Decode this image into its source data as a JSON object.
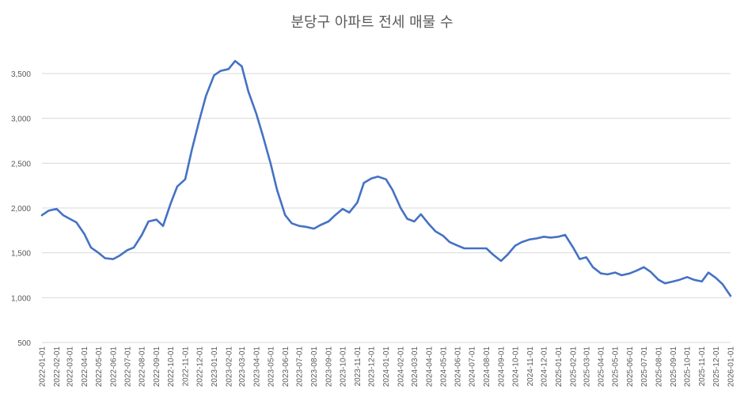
{
  "chart_data": {
    "type": "line",
    "title": "분당구 아파트 전세 매물 수",
    "xlabel": "",
    "ylabel": "",
    "ylim": [
      500,
      3500
    ],
    "yticks": [
      "500",
      "1,000",
      "1,500",
      "2,000",
      "2,500",
      "3,000",
      "3,500"
    ],
    "x_ticks": [
      "2022-01-01",
      "2022-02-01",
      "2022-03-01",
      "2022-04-01",
      "2022-05-01",
      "2022-06-01",
      "2022-07-01",
      "2022-08-01",
      "2022-09-01",
      "2022-10-01",
      "2022-11-01",
      "2022-12-01",
      "2023-01-01",
      "2023-02-01",
      "2023-03-01",
      "2023-04-01",
      "2023-05-01",
      "2023-06-01",
      "2023-07-01",
      "2023-08-01",
      "2023-09-01",
      "2023-10-01",
      "2023-11-01",
      "2023-12-01",
      "2024-01-01",
      "2024-02-01",
      "2024-03-01",
      "2024-04-01",
      "2024-05-01",
      "2024-06-01",
      "2024-07-01",
      "2024-08-01",
      "2024-09-01",
      "2024-10-01",
      "2024-11-01",
      "2024-12-01",
      "2025-01-01",
      "2025-02-01",
      "2025-03-01",
      "2025-04-01",
      "2025-05-01",
      "2025-06-01",
      "2025-07-01",
      "2025-08-01",
      "2025-09-01",
      "2025-10-01",
      "2025-11-01",
      "2025-12-01",
      "2026-01-01"
    ],
    "grid": true,
    "line_color": "#4472c4",
    "series": [
      {
        "name": "",
        "x": [
          "2022-01-01",
          "2022-01-15",
          "2022-02-01",
          "2022-02-15",
          "2022-03-01",
          "2022-03-15",
          "2022-04-01",
          "2022-04-15",
          "2022-05-01",
          "2022-05-15",
          "2022-06-01",
          "2022-06-15",
          "2022-07-01",
          "2022-07-15",
          "2022-08-01",
          "2022-08-15",
          "2022-09-01",
          "2022-09-15",
          "2022-10-01",
          "2022-10-15",
          "2022-11-01",
          "2022-11-15",
          "2022-12-01",
          "2022-12-15",
          "2023-01-01",
          "2023-01-15",
          "2023-02-01",
          "2023-02-15",
          "2023-03-01",
          "2023-03-15",
          "2023-04-01",
          "2023-04-15",
          "2023-05-01",
          "2023-05-15",
          "2023-06-01",
          "2023-06-15",
          "2023-07-01",
          "2023-07-15",
          "2023-08-01",
          "2023-08-15",
          "2023-09-01",
          "2023-09-15",
          "2023-10-01",
          "2023-10-15",
          "2023-11-01",
          "2023-11-15",
          "2023-12-01",
          "2023-12-15",
          "2024-01-01",
          "2024-01-15",
          "2024-02-01",
          "2024-02-15",
          "2024-03-01",
          "2024-03-15",
          "2024-04-01",
          "2024-04-15",
          "2024-05-01",
          "2024-05-15",
          "2024-06-01",
          "2024-06-15",
          "2024-07-01",
          "2024-07-15",
          "2024-08-01",
          "2024-08-15",
          "2024-09-01",
          "2024-09-15",
          "2024-10-01",
          "2024-10-15",
          "2024-11-01",
          "2024-11-15",
          "2024-12-01",
          "2024-12-15",
          "2025-01-01",
          "2025-01-15",
          "2025-02-01",
          "2025-02-15",
          "2025-03-01",
          "2025-03-15",
          "2025-04-01",
          "2025-04-15",
          "2025-05-01",
          "2025-05-15",
          "2025-06-01",
          "2025-06-15",
          "2025-07-01",
          "2025-07-15",
          "2025-08-01",
          "2025-08-15",
          "2025-09-01",
          "2025-09-15",
          "2025-10-01",
          "2025-10-15",
          "2025-11-01",
          "2025-11-15",
          "2025-12-01",
          "2025-12-15",
          "2026-01-01"
        ],
        "values": [
          1920,
          1970,
          1990,
          1920,
          1880,
          1840,
          1710,
          1560,
          1500,
          1440,
          1430,
          1470,
          1530,
          1560,
          1700,
          1850,
          1870,
          1800,
          2050,
          2240,
          2320,
          2650,
          2980,
          3250,
          3480,
          3530,
          3550,
          3640,
          3580,
          3300,
          3050,
          2800,
          2500,
          2200,
          1920,
          1830,
          1800,
          1790,
          1770,
          1810,
          1850,
          1920,
          1990,
          1950,
          2060,
          2280,
          2330,
          2350,
          2320,
          2200,
          2000,
          1880,
          1850,
          1930,
          1820,
          1740,
          1690,
          1620,
          1580,
          1550,
          1550,
          1550,
          1550,
          1480,
          1410,
          1480,
          1580,
          1620,
          1650,
          1660,
          1680,
          1670,
          1680,
          1700,
          1560,
          1430,
          1450,
          1340,
          1270,
          1260,
          1280,
          1250,
          1270,
          1300,
          1340,
          1290,
          1200,
          1160,
          1180,
          1200,
          1230,
          1200,
          1180,
          1280,
          1220,
          1150,
          1020
        ]
      }
    ]
  }
}
